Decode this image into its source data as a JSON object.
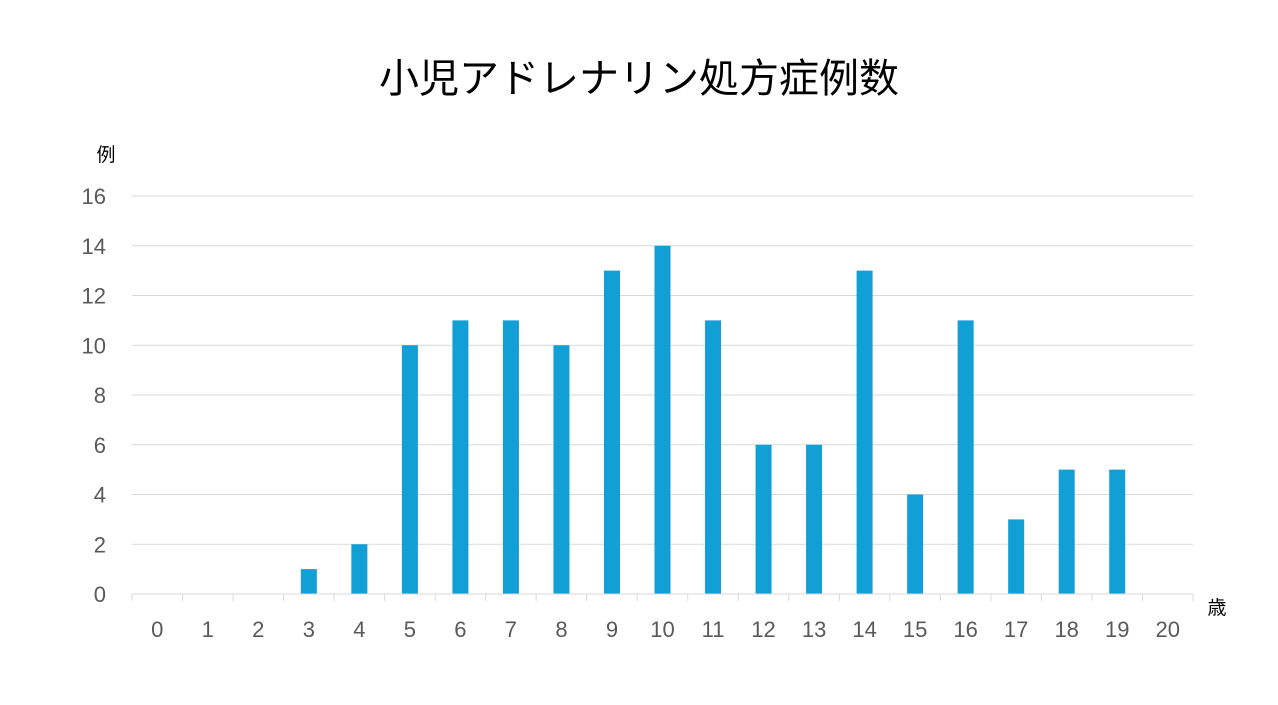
{
  "chart_data": {
    "type": "bar",
    "title": "小児アドレナリン処方症例数",
    "ylabel": "例",
    "xlabel": "歳",
    "categories": [
      "0",
      "1",
      "2",
      "3",
      "4",
      "5",
      "6",
      "7",
      "8",
      "9",
      "10",
      "11",
      "12",
      "13",
      "14",
      "15",
      "16",
      "17",
      "18",
      "19",
      "20"
    ],
    "values": [
      0,
      0,
      0,
      1,
      2,
      10,
      11,
      11,
      10,
      13,
      14,
      11,
      6,
      6,
      13,
      4,
      11,
      3,
      5,
      5,
      0
    ],
    "ylim": [
      0,
      16
    ],
    "yticks": [
      0,
      2,
      4,
      6,
      8,
      10,
      12,
      14,
      16
    ],
    "grid": true,
    "bar_color": "#129fd6",
    "grid_color": "#d9d9d9"
  }
}
